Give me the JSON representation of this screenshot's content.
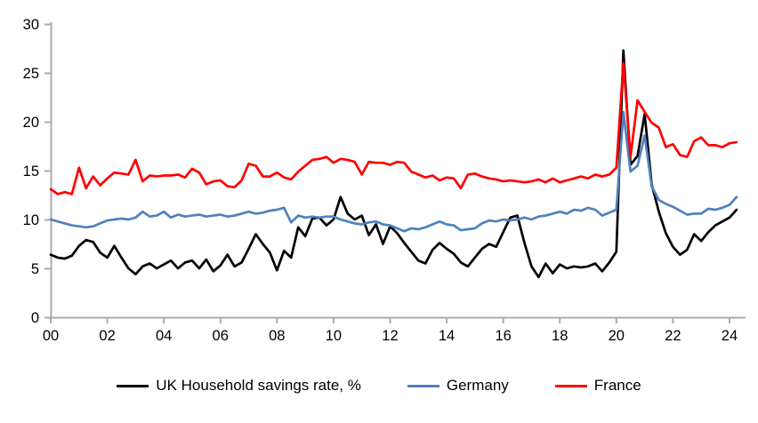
{
  "chart_data": {
    "type": "line",
    "title": "",
    "x_axis": {
      "tick_labels": [
        "00",
        "02",
        "04",
        "06",
        "08",
        "10",
        "12",
        "14",
        "16",
        "18",
        "20",
        "22",
        "24"
      ],
      "tick_years": [
        2000,
        2002,
        2004,
        2006,
        2008,
        2010,
        2012,
        2014,
        2016,
        2018,
        2020,
        2022,
        2024
      ],
      "start_year": 2000,
      "frequency": "quarterly"
    },
    "y_axis": {
      "ticks": [
        0,
        5,
        10,
        15,
        20,
        25,
        30
      ],
      "min": 0,
      "max": 30
    },
    "grid": false,
    "legend_position": "bottom",
    "axis_color": "#ABABAB",
    "tick_label_color": "#000000",
    "series": [
      {
        "name": "UK Household savings rate, %",
        "color": "#000000",
        "values": [
          6.4,
          6.1,
          6.0,
          6.3,
          7.3,
          7.9,
          7.7,
          6.6,
          6.1,
          7.3,
          6.1,
          5.0,
          4.4,
          5.2,
          5.5,
          5.0,
          5.4,
          5.8,
          5.0,
          5.6,
          5.8,
          5.0,
          5.9,
          4.7,
          5.3,
          6.4,
          5.2,
          5.6,
          7.0,
          8.5,
          7.5,
          6.6,
          4.8,
          6.8,
          6.1,
          9.2,
          8.3,
          10.1,
          10.2,
          9.4,
          10.0,
          12.3,
          10.6,
          10.0,
          10.4,
          8.4,
          9.5,
          7.5,
          9.3,
          8.6,
          7.6,
          6.7,
          5.8,
          5.5,
          6.9,
          7.6,
          7.0,
          6.5,
          5.6,
          5.2,
          6.1,
          7.0,
          7.5,
          7.2,
          8.7,
          10.2,
          10.4,
          7.6,
          5.2,
          4.1,
          5.5,
          4.5,
          5.4,
          5.0,
          5.2,
          5.1,
          5.2,
          5.5,
          4.7,
          5.6,
          6.7,
          27.3,
          15.6,
          16.5,
          20.8,
          13.6,
          10.8,
          8.6,
          7.2,
          6.4,
          6.9,
          8.5,
          7.8,
          8.7,
          9.4,
          9.8,
          10.2,
          11.0
        ]
      },
      {
        "name": "Germany",
        "color": "#4F81BD",
        "values": [
          10.0,
          9.8,
          9.6,
          9.4,
          9.3,
          9.2,
          9.3,
          9.6,
          9.9,
          10.0,
          10.1,
          10.0,
          10.2,
          10.8,
          10.3,
          10.4,
          10.8,
          10.2,
          10.5,
          10.3,
          10.4,
          10.5,
          10.3,
          10.4,
          10.5,
          10.3,
          10.4,
          10.6,
          10.8,
          10.6,
          10.7,
          10.9,
          11.0,
          11.2,
          9.7,
          10.4,
          10.2,
          10.3,
          10.2,
          10.3,
          10.3,
          10.0,
          9.8,
          9.6,
          9.5,
          9.7,
          9.8,
          9.5,
          9.4,
          9.1,
          8.8,
          9.1,
          9.0,
          9.2,
          9.5,
          9.8,
          9.5,
          9.4,
          8.9,
          9.0,
          9.1,
          9.6,
          9.9,
          9.8,
          10.0,
          9.9,
          10.0,
          10.2,
          10.0,
          10.3,
          10.4,
          10.6,
          10.8,
          10.6,
          11.0,
          10.9,
          11.2,
          11.0,
          10.4,
          10.7,
          11.0,
          21.0,
          14.9,
          15.5,
          18.6,
          13.4,
          12.0,
          11.6,
          11.3,
          10.9,
          10.5,
          10.6,
          10.6,
          11.1,
          11.0,
          11.2,
          11.5,
          12.3
        ]
      },
      {
        "name": "France",
        "color": "#FF0000",
        "values": [
          13.1,
          12.6,
          12.8,
          12.6,
          15.3,
          13.2,
          14.4,
          13.5,
          14.2,
          14.8,
          14.7,
          14.6,
          16.1,
          13.9,
          14.5,
          14.4,
          14.5,
          14.5,
          14.6,
          14.3,
          15.2,
          14.8,
          13.6,
          13.9,
          14.0,
          13.4,
          13.3,
          14.0,
          15.7,
          15.5,
          14.4,
          14.4,
          14.8,
          14.3,
          14.1,
          14.9,
          15.5,
          16.1,
          16.2,
          16.4,
          15.8,
          16.2,
          16.1,
          15.9,
          14.6,
          15.9,
          15.8,
          15.8,
          15.6,
          15.9,
          15.8,
          14.9,
          14.6,
          14.3,
          14.5,
          14.0,
          14.3,
          14.2,
          13.2,
          14.6,
          14.7,
          14.4,
          14.2,
          14.1,
          13.9,
          14.0,
          13.9,
          13.8,
          13.9,
          14.1,
          13.8,
          14.2,
          13.8,
          14.0,
          14.2,
          14.4,
          14.2,
          14.6,
          14.4,
          14.6,
          15.3,
          26.0,
          16.4,
          22.2,
          21.0,
          19.9,
          19.4,
          17.4,
          17.7,
          16.6,
          16.4,
          18.0,
          18.4,
          17.6,
          17.6,
          17.4,
          17.8,
          17.9
        ]
      }
    ]
  }
}
